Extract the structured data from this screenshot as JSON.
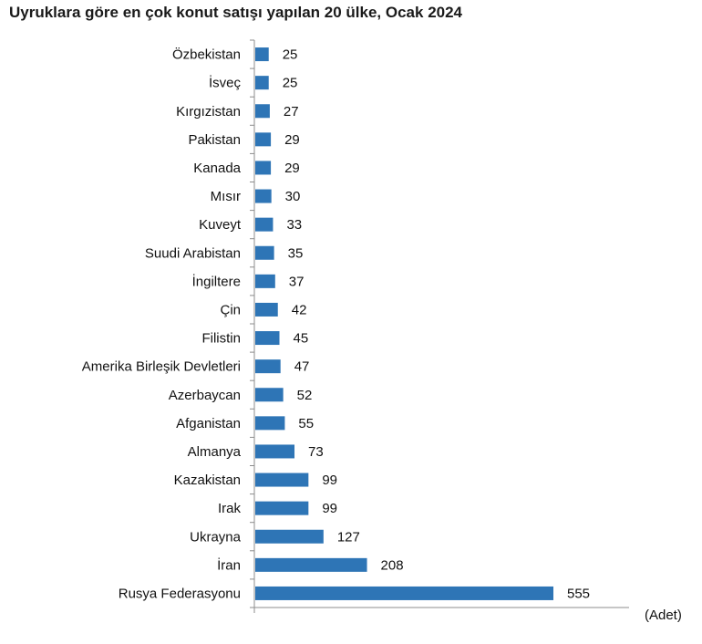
{
  "chart_data": {
    "type": "bar",
    "orientation": "horizontal",
    "title": "Uyruklara göre en çok konut satışı yapılan 20 ülke, Ocak 2024",
    "unit_label": "(Adet)",
    "categories": [
      "Özbekistan",
      "İsveç",
      "Kırgızistan",
      "Pakistan",
      "Kanada",
      "Mısır",
      "Kuveyt",
      "Suudi Arabistan",
      "İngiltere",
      "Çin",
      "Filistin",
      "Amerika Birleşik Devletleri",
      "Azerbaycan",
      "Afganistan",
      "Almanya",
      "Kazakistan",
      "Irak",
      "Ukrayna",
      "İran",
      "Rusya Federasyonu"
    ],
    "values": [
      25,
      25,
      27,
      29,
      29,
      30,
      33,
      35,
      37,
      42,
      45,
      47,
      52,
      55,
      73,
      99,
      99,
      127,
      208,
      555
    ],
    "bar_color": "#2e75b6",
    "xlim": [
      0,
      555
    ],
    "grid": false,
    "legend": "none"
  }
}
